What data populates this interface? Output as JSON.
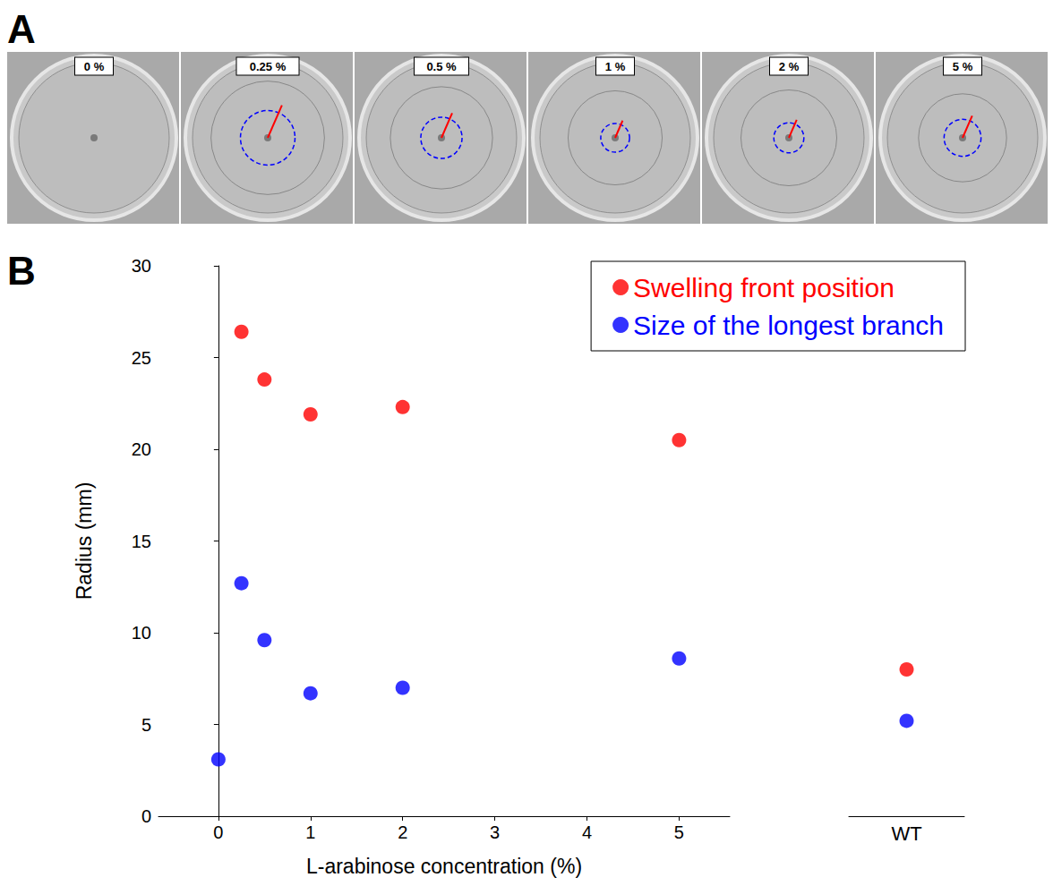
{
  "panel_labels": [
    "A",
    "B"
  ],
  "dish_labels": [
    "0 %",
    "0.25 %",
    "0.5 %",
    "1 %",
    "2 %",
    "5 %"
  ],
  "chart_data": [
    {
      "type": "scatter",
      "x": [
        0,
        0.25,
        0.5,
        1,
        2,
        5
      ],
      "series": [
        {
          "name": "Swelling front position",
          "color": "#ff0000",
          "values": [
            null,
            26.4,
            23.8,
            21.9,
            22.3,
            20.5
          ]
        },
        {
          "name": "Size of the longest branch",
          "color": "#0000ff",
          "values": [
            3.1,
            12.7,
            9.6,
            6.7,
            7.0,
            8.6
          ]
        }
      ],
      "x_label": "L-arabinose concentration (%)",
      "y_label": "Radius (mm)",
      "xlim": [
        -0.65,
        5.55
      ],
      "xticks": [
        0,
        1,
        2,
        3,
        4,
        5
      ],
      "ylim": [
        0,
        30
      ],
      "yticks": [
        0,
        5,
        10,
        15,
        20,
        25,
        30
      ],
      "legend": "upper right",
      "marker": "circle"
    },
    {
      "type": "scatter",
      "categories": [
        "WT"
      ],
      "series": [
        {
          "name": "Swelling front position",
          "color": "#ff0000",
          "values": [
            8.0
          ]
        },
        {
          "name": "Size of the longest branch",
          "color": "#0000ff",
          "values": [
            5.2
          ]
        }
      ],
      "ylim": [
        0,
        30
      ],
      "tick_labels": "x",
      "marker": "circle"
    }
  ]
}
